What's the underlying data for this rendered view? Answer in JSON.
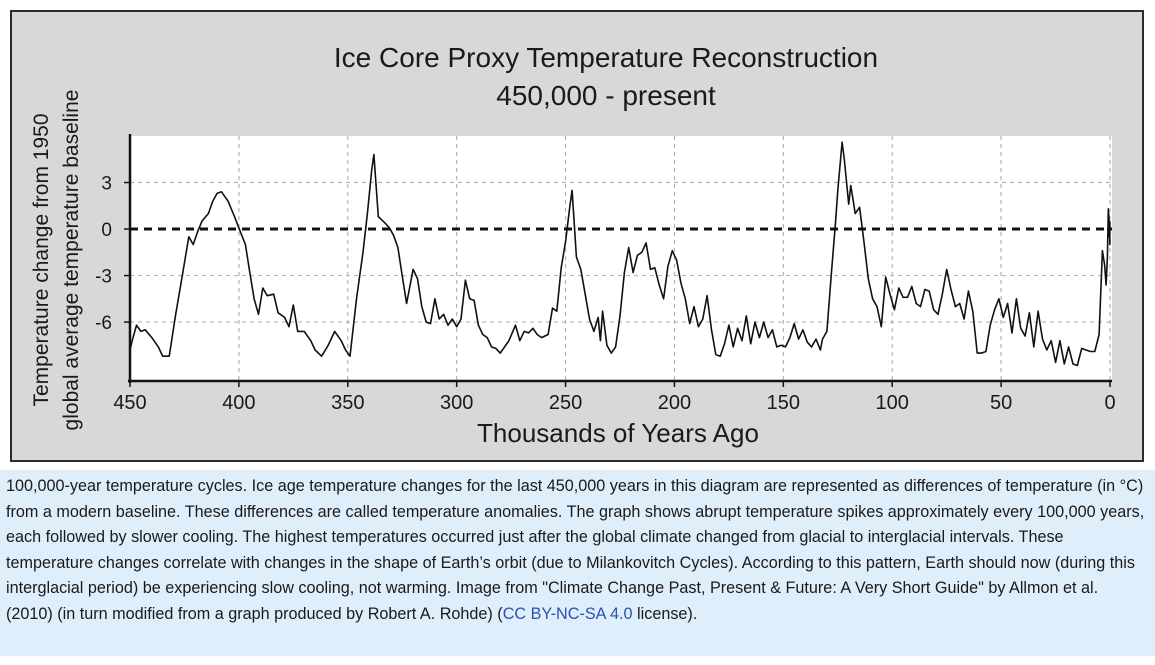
{
  "chart_data": {
    "type": "line",
    "title_line1": "Ice Core Proxy Temperature Reconstruction",
    "title_line2": "450,000 - present",
    "xlabel": "Thousands of Years Ago",
    "ylabel_line1": "Temperature change from 1950",
    "ylabel_line2": "global average temperature baseline",
    "xlim": [
      450,
      0
    ],
    "ylim": [
      -9.8,
      6
    ],
    "x_ticks": [
      450,
      400,
      350,
      300,
      250,
      200,
      150,
      100,
      50,
      0
    ],
    "y_ticks": [
      3,
      0,
      -3,
      -6
    ],
    "grid": true,
    "baseline": 0,
    "series": [
      {
        "name": "Temperature anomaly",
        "points": [
          [
            450,
            -7.8
          ],
          [
            449,
            -7.2
          ],
          [
            447,
            -6.2
          ],
          [
            445,
            -6.6
          ],
          [
            443,
            -6.5
          ],
          [
            440,
            -7
          ],
          [
            437,
            -7.6
          ],
          [
            435,
            -8.2
          ],
          [
            432,
            -8.2
          ],
          [
            429,
            -5.5
          ],
          [
            426,
            -3
          ],
          [
            423,
            -0.5
          ],
          [
            421,
            -1
          ],
          [
            419,
            -0.2
          ],
          [
            417,
            0.5
          ],
          [
            414,
            1
          ],
          [
            412,
            1.8
          ],
          [
            410,
            2.3
          ],
          [
            408,
            2.4
          ],
          [
            405,
            1.8
          ],
          [
            402,
            0.8
          ],
          [
            399,
            -0.3
          ],
          [
            397,
            -1
          ],
          [
            395,
            -2.8
          ],
          [
            393,
            -4.5
          ],
          [
            391,
            -5.5
          ],
          [
            389,
            -3.8
          ],
          [
            387,
            -4.3
          ],
          [
            384,
            -4.2
          ],
          [
            382,
            -5.4
          ],
          [
            379,
            -5.7
          ],
          [
            377,
            -6.3
          ],
          [
            375,
            -4.9
          ],
          [
            373,
            -6.6
          ],
          [
            370,
            -6.6
          ],
          [
            367,
            -7.2
          ],
          [
            365,
            -7.8
          ],
          [
            362,
            -8.2
          ],
          [
            359,
            -7.5
          ],
          [
            356,
            -6.6
          ],
          [
            353,
            -7.2
          ],
          [
            351,
            -7.8
          ],
          [
            349,
            -8.2
          ],
          [
            346,
            -4.5
          ],
          [
            343,
            -1.5
          ],
          [
            341,
            1
          ],
          [
            339,
            3.8
          ],
          [
            338,
            4.8
          ],
          [
            336,
            0.8
          ],
          [
            333,
            0.4
          ],
          [
            331,
            0.1
          ],
          [
            329,
            -0.4
          ],
          [
            327,
            -1.2
          ],
          [
            325,
            -3
          ],
          [
            323,
            -4.8
          ],
          [
            320,
            -2.6
          ],
          [
            318,
            -3.2
          ],
          [
            316,
            -5
          ],
          [
            314,
            -6
          ],
          [
            312,
            -6.1
          ],
          [
            310,
            -4.5
          ],
          [
            308,
            -5.8
          ],
          [
            306,
            -5.5
          ],
          [
            304,
            -6.2
          ],
          [
            302,
            -5.8
          ],
          [
            300,
            -6.3
          ],
          [
            298,
            -5.8
          ],
          [
            296,
            -3.3
          ],
          [
            294,
            -4.5
          ],
          [
            292,
            -4.6
          ],
          [
            290,
            -6.2
          ],
          [
            288,
            -6.8
          ],
          [
            286,
            -7
          ],
          [
            284,
            -7.6
          ],
          [
            282,
            -7.7
          ],
          [
            280,
            -8
          ],
          [
            278,
            -7.6
          ],
          [
            276,
            -7.2
          ],
          [
            273,
            -6.2
          ],
          [
            271,
            -7.2
          ],
          [
            269,
            -6.6
          ],
          [
            267,
            -6.7
          ],
          [
            265,
            -6.4
          ],
          [
            263,
            -6.8
          ],
          [
            261,
            -7
          ],
          [
            258,
            -6.8
          ],
          [
            256,
            -5.1
          ],
          [
            254,
            -5.3
          ],
          [
            252,
            -2.5
          ],
          [
            250,
            -0.8
          ],
          [
            248,
            1.5
          ],
          [
            247,
            2.5
          ],
          [
            245,
            -1.8
          ],
          [
            243,
            -2.6
          ],
          [
            241,
            -4.2
          ],
          [
            239,
            -5.8
          ],
          [
            237,
            -6.6
          ],
          [
            235,
            -5.7
          ],
          [
            234,
            -7.2
          ],
          [
            233,
            -5.3
          ],
          [
            231,
            -7.5
          ],
          [
            229,
            -8
          ],
          [
            227,
            -7.6
          ],
          [
            225,
            -5.6
          ],
          [
            223,
            -2.8
          ],
          [
            221,
            -1.2
          ],
          [
            219,
            -2.8
          ],
          [
            217,
            -1.7
          ],
          [
            215,
            -1.5
          ],
          [
            213,
            -0.9
          ],
          [
            211,
            -2.6
          ],
          [
            209,
            -2.5
          ],
          [
            207,
            -3.6
          ],
          [
            205,
            -4.5
          ],
          [
            203,
            -2.4
          ],
          [
            201,
            -1.4
          ],
          [
            199,
            -2
          ],
          [
            197,
            -3.5
          ],
          [
            195,
            -4.5
          ],
          [
            193,
            -6.1
          ],
          [
            191,
            -5
          ],
          [
            189,
            -6.3
          ],
          [
            187,
            -5.8
          ],
          [
            185,
            -4.3
          ],
          [
            183,
            -6.5
          ],
          [
            181,
            -8.1
          ],
          [
            179,
            -8.2
          ],
          [
            177,
            -7.4
          ],
          [
            175,
            -6.2
          ],
          [
            173,
            -7.6
          ],
          [
            171,
            -6.4
          ],
          [
            169,
            -7.2
          ],
          [
            167,
            -5.6
          ],
          [
            165,
            -7.4
          ],
          [
            163,
            -6
          ],
          [
            161,
            -7
          ],
          [
            159,
            -6
          ],
          [
            157,
            -7
          ],
          [
            155,
            -6.5
          ],
          [
            153,
            -7.6
          ],
          [
            151,
            -7.5
          ],
          [
            149,
            -7.6
          ],
          [
            147,
            -7
          ],
          [
            145,
            -6.1
          ],
          [
            143,
            -7.1
          ],
          [
            141,
            -6.5
          ],
          [
            139,
            -7.3
          ],
          [
            137,
            -7.6
          ],
          [
            135,
            -7.1
          ],
          [
            133,
            -7.8
          ],
          [
            132,
            -7.1
          ],
          [
            130,
            -6.6
          ],
          [
            128,
            -3
          ],
          [
            126,
            0.5
          ],
          [
            125,
            2.5
          ],
          [
            123,
            5.6
          ],
          [
            122,
            4.5
          ],
          [
            120,
            1.6
          ],
          [
            119,
            2.8
          ],
          [
            117,
            1
          ],
          [
            115,
            1.4
          ],
          [
            113,
            -0.8
          ],
          [
            111,
            -3.2
          ],
          [
            109,
            -4.5
          ],
          [
            107,
            -5
          ],
          [
            105,
            -6.3
          ],
          [
            103,
            -3.1
          ],
          [
            101,
            -4.2
          ],
          [
            99,
            -5.2
          ],
          [
            97,
            -3.8
          ],
          [
            95,
            -4.4
          ],
          [
            93,
            -4.4
          ],
          [
            91,
            -3.7
          ],
          [
            89,
            -4.8
          ],
          [
            87,
            -5
          ],
          [
            85,
            -3.9
          ],
          [
            83,
            -4
          ],
          [
            81,
            -5.2
          ],
          [
            79,
            -5.5
          ],
          [
            77,
            -4.2
          ],
          [
            75,
            -2.6
          ],
          [
            73,
            -3.9
          ],
          [
            71,
            -5
          ],
          [
            69,
            -4.8
          ],
          [
            67,
            -5.8
          ],
          [
            65,
            -4
          ],
          [
            63,
            -5.3
          ],
          [
            61,
            -8
          ],
          [
            59,
            -8
          ],
          [
            57,
            -7.9
          ],
          [
            55,
            -6.2
          ],
          [
            53,
            -5.2
          ],
          [
            51,
            -4.5
          ],
          [
            49,
            -5.7
          ],
          [
            47,
            -4.8
          ],
          [
            45,
            -6.7
          ],
          [
            43,
            -4.5
          ],
          [
            41,
            -6.4
          ],
          [
            39,
            -6.9
          ],
          [
            37,
            -5.4
          ],
          [
            35,
            -7.6
          ],
          [
            33,
            -5.3
          ],
          [
            31,
            -7.1
          ],
          [
            29,
            -7.8
          ],
          [
            27,
            -7.2
          ],
          [
            25,
            -8.6
          ],
          [
            23,
            -7.2
          ],
          [
            21,
            -8.7
          ],
          [
            19,
            -7.6
          ],
          [
            17,
            -8.7
          ],
          [
            15,
            -8.8
          ],
          [
            13,
            -7.7
          ],
          [
            11,
            -7.8
          ],
          [
            9,
            -7.9
          ],
          [
            7,
            -7.9
          ],
          [
            5,
            -6.8
          ],
          [
            3.5,
            -1.4
          ],
          [
            2.5,
            -2.3
          ],
          [
            1.8,
            -3.6
          ],
          [
            1.2,
            -1.8
          ],
          [
            0.8,
            1.3
          ],
          [
            0.5,
            0.8
          ],
          [
            0.3,
            -0.5
          ],
          [
            0.2,
            0.3
          ],
          [
            0.1,
            -1
          ],
          [
            0.05,
            0.5
          ],
          [
            0,
            0.5
          ]
        ]
      }
    ]
  },
  "caption": {
    "text_before_link": "100,000-year temperature cycles. Ice age temperature changes for the last 450,000 years in this diagram are represented as differences of temperature (in °C) from a modern baseline. These differences are called temperature anomalies. The graph shows abrupt temperature spikes approximately every 100,000 years, each followed by slower cooling. The highest temperatures occurred just after the global climate changed from glacial to interglacial intervals. These temperature changes correlate with changes in the shape of Earth’s orbit (due to Milankovitch Cycles). According to this pattern, Earth should now (during this interglacial period) be experiencing slow cooling, not warming. Image from \"Climate Change Past, Present & Future: A Very Short Guide\" by Allmon et al. (2010) (in turn modified from a graph produced by Robert A. Rohde) (",
    "link_text": "CC BY-NC-SA 4.0",
    "text_after_link": " license)."
  },
  "colors": {
    "figure_background": "#d8d8d8",
    "plot_background": "#ffffff",
    "line": "#111111",
    "grid": "#b5b5b5",
    "caption_background": "#dfeefb",
    "link": "#2a53b0"
  }
}
